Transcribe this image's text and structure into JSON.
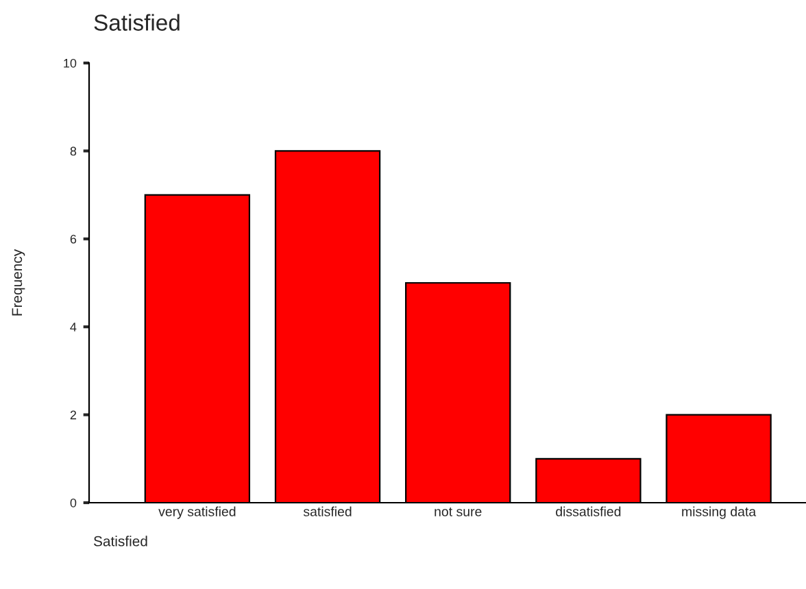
{
  "chart_data": {
    "type": "bar",
    "title": "Satisfied",
    "xlabel": "Satisfied",
    "ylabel": "Frequency",
    "categories": [
      "very satisfied",
      "satisfied",
      "not sure",
      "dissatisfied",
      "missing data"
    ],
    "values": [
      7,
      8,
      5,
      1,
      2
    ],
    "color": "#ff0000",
    "ylim": [
      0,
      10
    ],
    "yticks": [
      0,
      2,
      4,
      6,
      8,
      10
    ],
    "grid": false,
    "legend": false
  }
}
